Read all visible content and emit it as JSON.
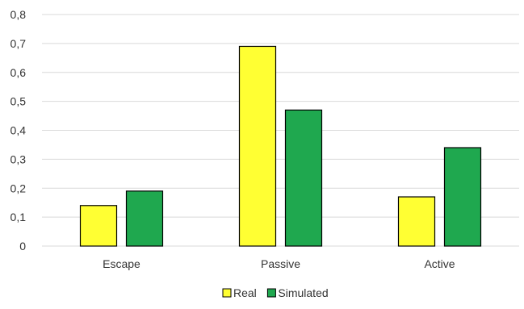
{
  "chart_data": {
    "type": "bar",
    "categories": [
      "Escape",
      "Passive",
      "Active"
    ],
    "series": [
      {
        "name": "Real",
        "values": [
          0.14,
          0.69,
          0.17
        ],
        "color": "#FFFF33"
      },
      {
        "name": "Simulated",
        "values": [
          0.19,
          0.47,
          0.34
        ],
        "color": "#1FA84F"
      }
    ],
    "title": "",
    "xlabel": "",
    "ylabel": "",
    "ylim": [
      0,
      0.8
    ],
    "yticks": [
      "0",
      "0,1",
      "0,2",
      "0,3",
      "0,4",
      "0,5",
      "0,6",
      "0,7",
      "0,8"
    ],
    "grid": true,
    "legend_position": "bottom-center",
    "gridline_color": "#D9D9D9",
    "bar_edge_color": "#000000"
  }
}
